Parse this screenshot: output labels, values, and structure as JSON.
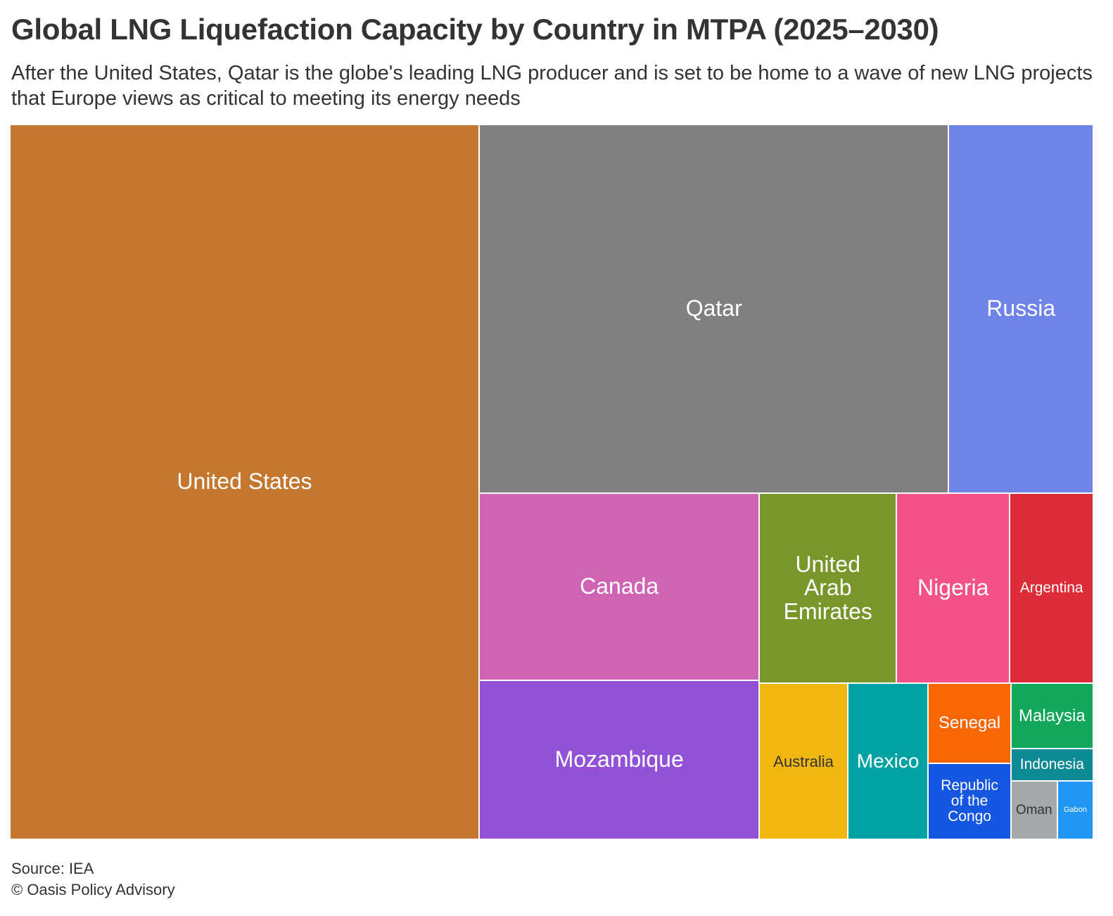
{
  "title": "Global LNG Liquefaction Capacity by Country in MTPA (2025–2030)",
  "subtitle": "After the United States, Qatar is the globe's leading LNG producer and is set to be home to a wave of new LNG projects that Europe views as critical to meeting its energy needs",
  "source": "Source: IEA",
  "credit": "© Oasis Policy Advisory",
  "chart_data": {
    "type": "treemap",
    "title": "Global LNG Liquefaction Capacity by Country in MTPA (2025–2030)",
    "unit": "MTPA",
    "values_estimated_from_area": true,
    "items": [
      {
        "label": "United States",
        "value": 112.0,
        "color": "#c4772f"
      },
      {
        "label": "Qatar",
        "value": 57.8,
        "color": "#808080"
      },
      {
        "label": "Russia",
        "value": 17.8,
        "color": "#6e84e8"
      },
      {
        "label": "Canada",
        "value": 17.5,
        "color": "#d064b4"
      },
      {
        "label": "Mozambique",
        "value": 14.9,
        "color": "#9351d8"
      },
      {
        "label": "United Arab Emirates",
        "value": 8.7,
        "color": "#789629"
      },
      {
        "label": "Nigeria",
        "value": 7.2,
        "color": "#f4508a"
      },
      {
        "label": "Argentina",
        "value": 5.3,
        "color": "#dd2c38"
      },
      {
        "label": "Australia",
        "value": 4.6,
        "color": "#f0b711"
      },
      {
        "label": "Mexico",
        "value": 4.2,
        "color": "#00a2a4"
      },
      {
        "label": "Senegal",
        "value": 2.2,
        "color": "#f86704"
      },
      {
        "label": "Republic of the Congo",
        "value": 2.1,
        "color": "#1557e0"
      },
      {
        "label": "Malaysia",
        "value": 1.8,
        "color": "#11a85c"
      },
      {
        "label": "Indonesia",
        "value": 0.9,
        "color": "#0e8a94"
      },
      {
        "label": "Oman",
        "value": 0.9,
        "color": "#a3a8ad"
      },
      {
        "label": "Gabon",
        "value": 0.7,
        "color": "#2196f3"
      }
    ]
  }
}
